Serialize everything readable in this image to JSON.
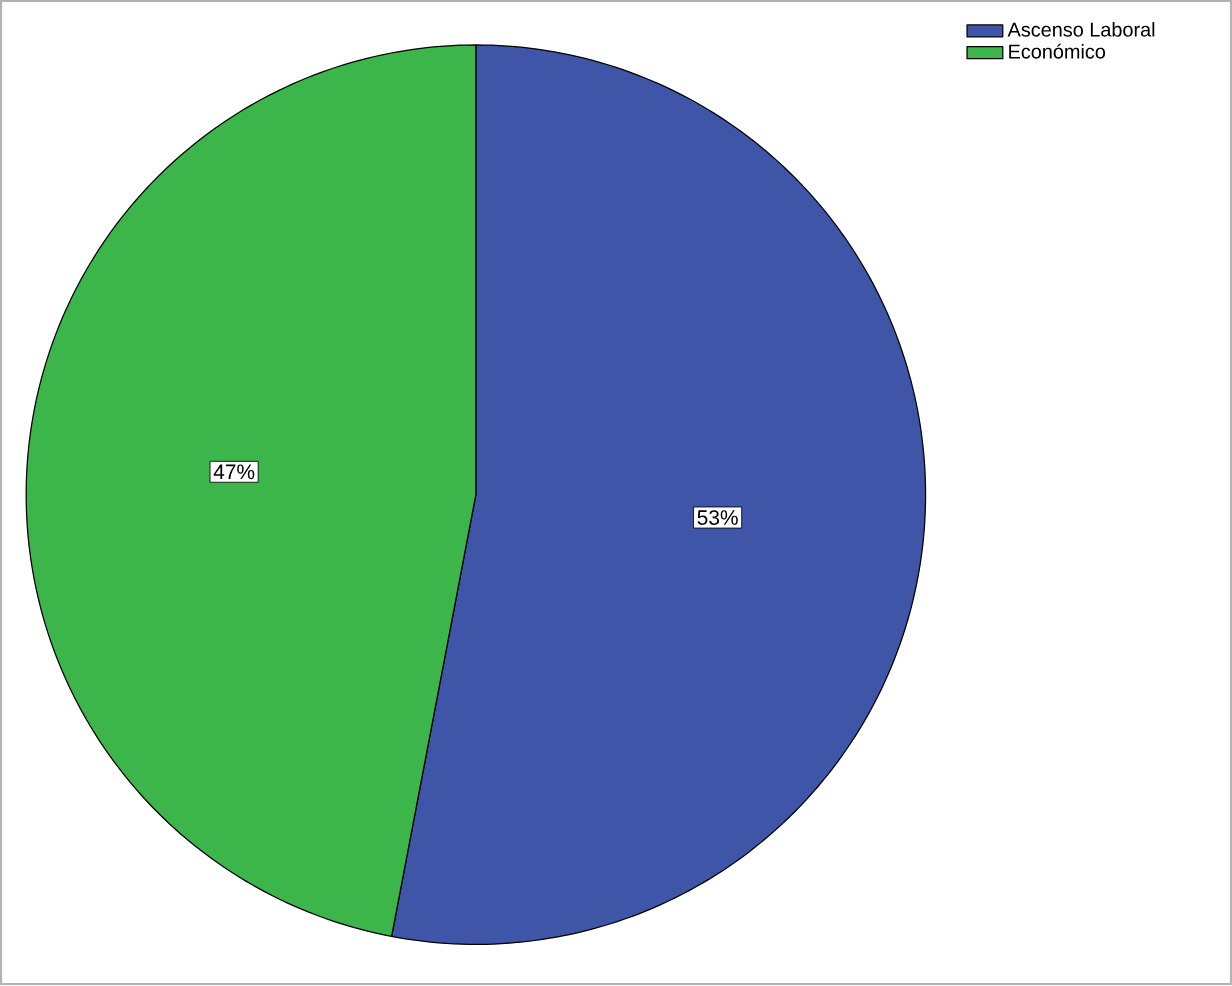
{
  "chart_data": {
    "type": "pie",
    "categories": [
      "Ascenso Laboral",
      "Económico"
    ],
    "values": [
      53,
      47
    ],
    "colors": [
      "#3e55a8",
      "#3cb54a"
    ],
    "value_labels": [
      "53%",
      "47%"
    ],
    "legend": "top right"
  }
}
